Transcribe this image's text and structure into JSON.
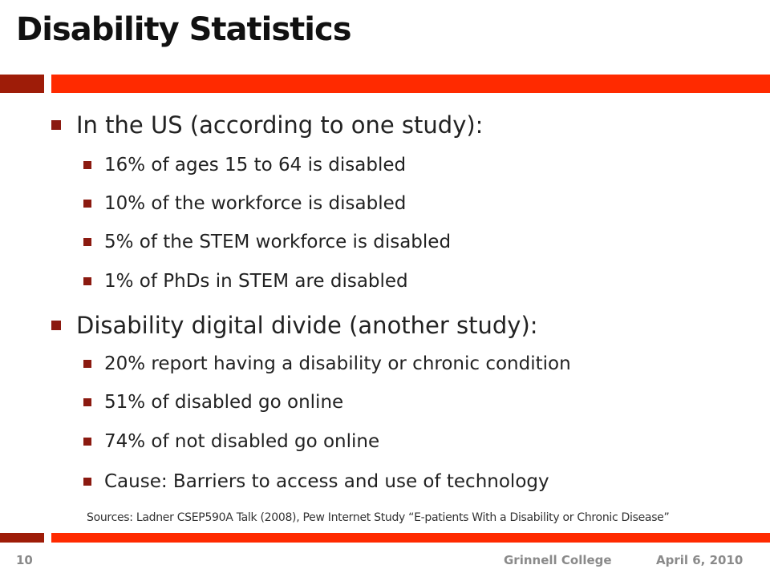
{
  "slide": {
    "title": "Disability Statistics",
    "sections": [
      {
        "heading": "In the US (according to one study):",
        "items": [
          "16% of ages 15 to 64 is disabled",
          "10% of the workforce is disabled",
          "5% of the STEM workforce is disabled",
          "1% of PhDs in STEM are disabled"
        ]
      },
      {
        "heading": "Disability digital divide (another study):",
        "items": [
          "20% report having a disability or chronic condition",
          "51% of disabled go online",
          "74% of not disabled go online",
          "Cause: Barriers to access and use of technology"
        ]
      }
    ],
    "sources": "Sources: Ladner CSEP590A Talk (2008), Pew Internet Study “E-patients With a Disability or Chronic Disease”"
  },
  "footer": {
    "page_number": "10",
    "organization": "Grinnell College",
    "date": "April 6, 2010"
  },
  "colors": {
    "accent_dark": "#9e1c08",
    "accent_bright": "#ff2a00",
    "bullet": "#8b1a10",
    "footer_text": "#8a8a8a"
  }
}
